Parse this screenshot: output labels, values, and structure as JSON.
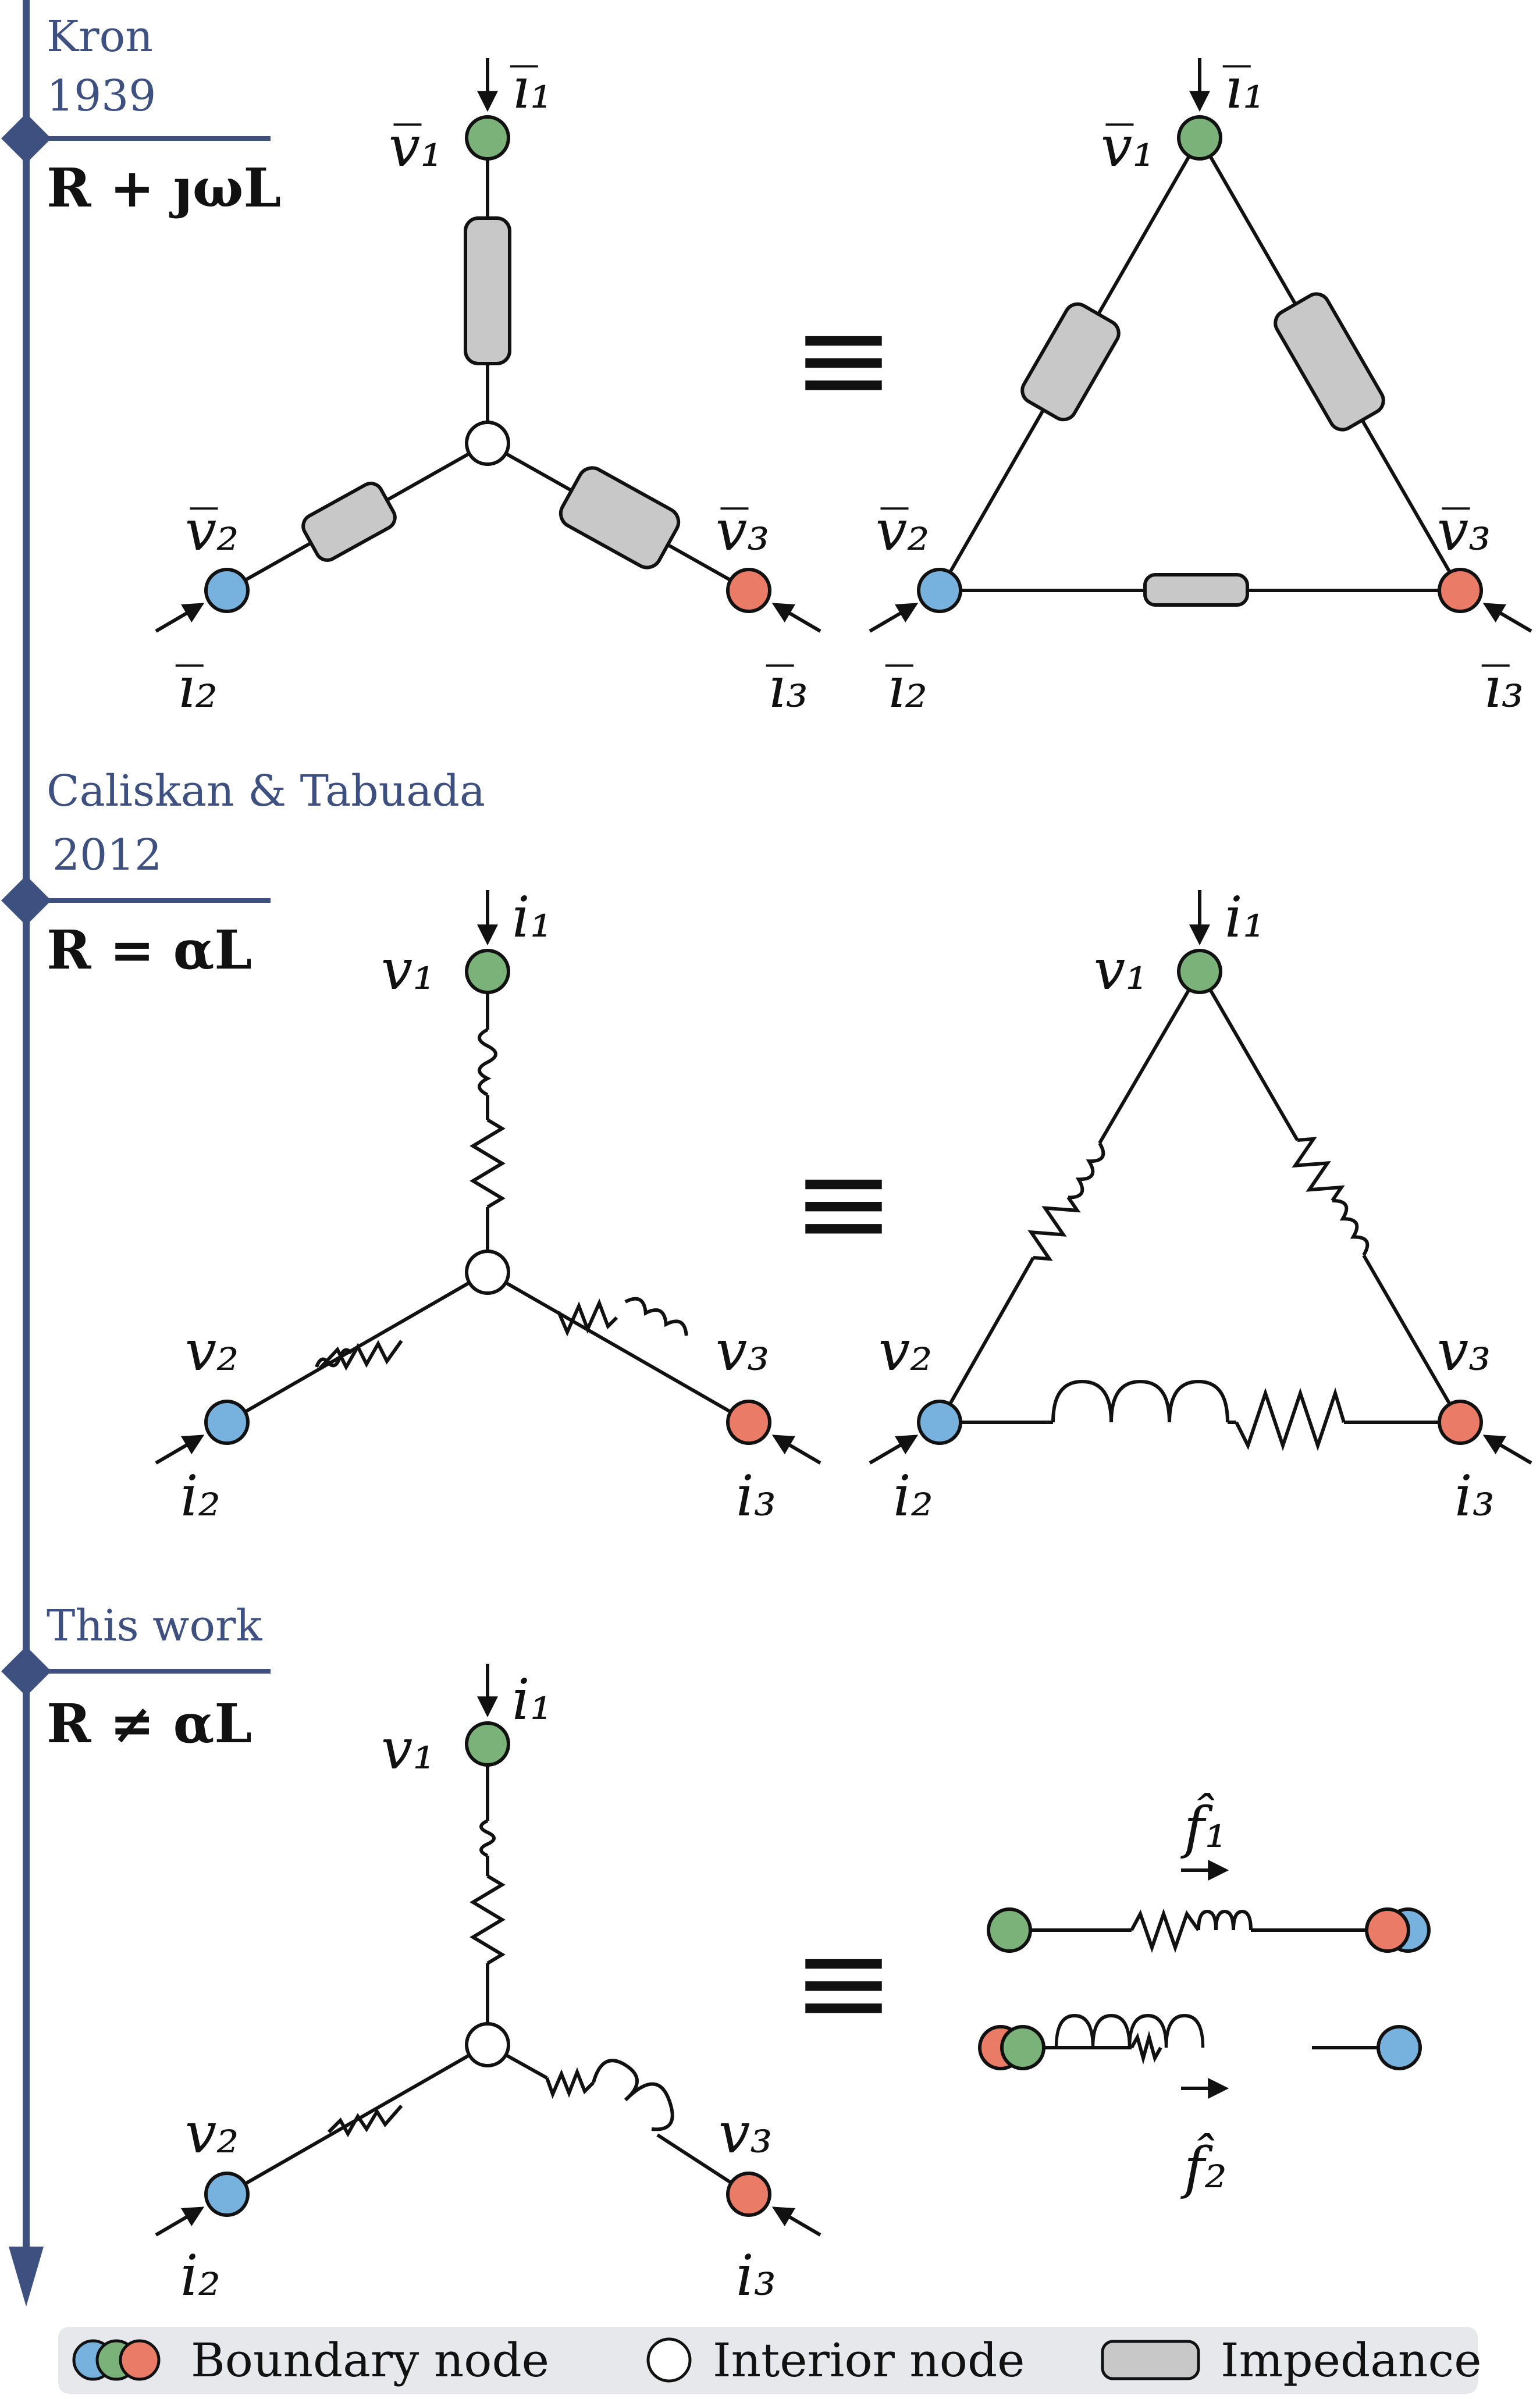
{
  "colors": {
    "timeline": "#3d5080",
    "green": "#7ab27a",
    "blue": "#77b2de",
    "red": "#ea7b66",
    "impedance": "#c8c8c8",
    "legend_bg": "#e6e8ec"
  },
  "sections": [
    {
      "era_lines": [
        "Kron",
        "1939"
      ],
      "relation": "R + ȷωL",
      "labels": {
        "v1": "v̅₁",
        "v2": "v̅₂",
        "v3": "v̅₃",
        "i1": "i̅₁",
        "i2": "i̅₂",
        "i3": "i̅₃"
      }
    },
    {
      "era_lines": [
        "Caliskan & Tabuada",
        "2012"
      ],
      "relation": "R = αL",
      "labels": {
        "v1": "v₁",
        "v2": "v₂",
        "v3": "v₃",
        "i1": "i₁",
        "i2": "i₂",
        "i3": "i₃"
      }
    },
    {
      "era_lines": [
        "This work"
      ],
      "relation": "R ≠ αL",
      "labels": {
        "v1": "v₁",
        "v2": "v₂",
        "v3": "v₃",
        "i1": "i₁",
        "i2": "i₂",
        "i3": "i₃",
        "f1": "f̂₁",
        "f2": "f̂₂"
      }
    }
  ],
  "equiv_symbol": "≡",
  "legend": {
    "boundary": "Boundary node",
    "interior": "Interior node",
    "impedance": "Impedance"
  }
}
